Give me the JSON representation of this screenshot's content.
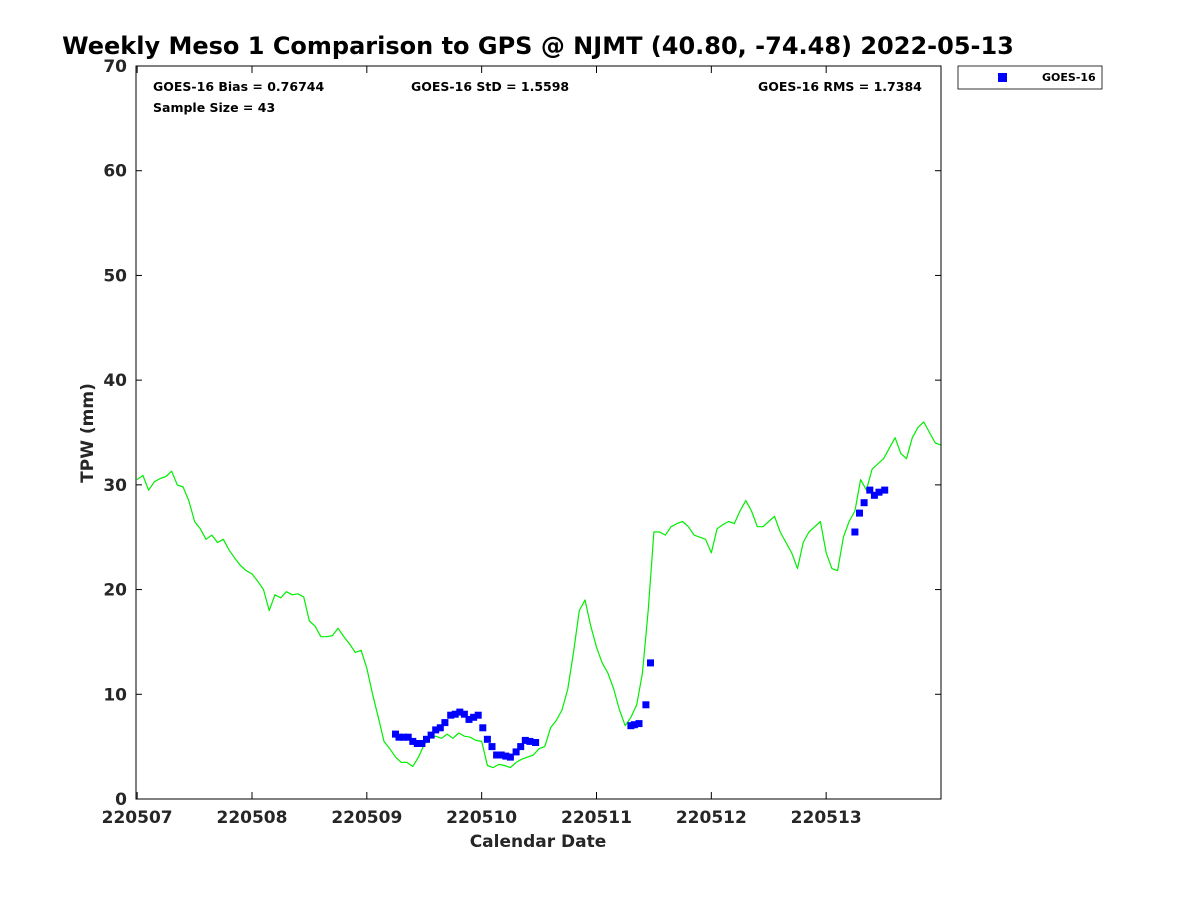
{
  "chart_data": {
    "type": "line",
    "title": "Weekly Meso 1 Comparison to GPS @ NJMT (40.80, -74.48) 2022-05-13",
    "xlabel": "Calendar Date",
    "ylabel": "TPW (mm)",
    "xlim": [
      -0.01,
      7.0
    ],
    "ylim": [
      0,
      70
    ],
    "yticks": [
      0,
      10,
      20,
      30,
      40,
      50,
      60,
      70
    ],
    "xticks": [
      {
        "pos": 0,
        "label": "220507"
      },
      {
        "pos": 1,
        "label": "220508"
      },
      {
        "pos": 2,
        "label": "220509"
      },
      {
        "pos": 3,
        "label": "220510"
      },
      {
        "pos": 4,
        "label": "220511"
      },
      {
        "pos": 5,
        "label": "220512"
      },
      {
        "pos": 6,
        "label": "220513"
      }
    ],
    "stats": {
      "bias": "GOES-16 Bias = 0.76744",
      "std": "GOES-16 StD = 1.5598",
      "rms": "GOES-16 RMS = 1.7384",
      "sample": "Sample Size = 43"
    },
    "legend": {
      "position": "top-right-outside",
      "entries": [
        {
          "name": "GOES-16",
          "color": "#0000ff",
          "marker": "square"
        }
      ]
    },
    "series": [
      {
        "name": "GPS",
        "color": "#00ee00",
        "marker": "line",
        "x": [
          0.0,
          0.05,
          0.1,
          0.15,
          0.2,
          0.25,
          0.3,
          0.35,
          0.4,
          0.45,
          0.5,
          0.55,
          0.6,
          0.65,
          0.7,
          0.75,
          0.8,
          0.85,
          0.9,
          0.95,
          1.0,
          1.05,
          1.1,
          1.15,
          1.2,
          1.25,
          1.3,
          1.35,
          1.4,
          1.45,
          1.5,
          1.55,
          1.6,
          1.65,
          1.7,
          1.75,
          1.8,
          1.85,
          1.9,
          1.95,
          2.0,
          2.05,
          2.1,
          2.15,
          2.2,
          2.25,
          2.3,
          2.35,
          2.4,
          2.45,
          2.5,
          2.55,
          2.6,
          2.65,
          2.7,
          2.75,
          2.8,
          2.85,
          2.9,
          2.95,
          3.0,
          3.05,
          3.1,
          3.15,
          3.2,
          3.25,
          3.3,
          3.35,
          3.4,
          3.45,
          3.5,
          3.55,
          3.6,
          3.65,
          3.7,
          3.75,
          3.8,
          3.85,
          3.9,
          3.95,
          4.0,
          4.05,
          4.1,
          4.15,
          4.2,
          4.25,
          4.3,
          4.35,
          4.4,
          4.45,
          4.5,
          4.55,
          4.6,
          4.65,
          4.7,
          4.75,
          4.8,
          4.85,
          4.9,
          4.95,
          5.0,
          5.05,
          5.1,
          5.15,
          5.2,
          5.25,
          5.3,
          5.35,
          5.4,
          5.45,
          5.5,
          5.55,
          5.6,
          5.65,
          5.7,
          5.75,
          5.8,
          5.85,
          5.9,
          5.95,
          6.0,
          6.05,
          6.1,
          6.15,
          6.2,
          6.25,
          6.3,
          6.35,
          6.4,
          6.45,
          6.5,
          6.55,
          6.6,
          6.65,
          6.7,
          6.75,
          6.8,
          6.85,
          6.9,
          6.95,
          7.0
        ],
        "y": [
          30.5,
          30.9,
          29.5,
          30.3,
          30.6,
          30.8,
          31.3,
          30.0,
          29.8,
          28.5,
          26.5,
          25.8,
          24.8,
          25.2,
          24.5,
          24.8,
          23.8,
          23.0,
          22.3,
          21.8,
          21.5,
          20.8,
          20.0,
          18.0,
          19.5,
          19.2,
          19.8,
          19.5,
          19.6,
          19.3,
          17.0,
          16.5,
          15.5,
          15.5,
          15.6,
          16.3,
          15.5,
          14.8,
          14.0,
          14.2,
          12.5,
          10.0,
          7.8,
          5.5,
          4.8,
          4.0,
          3.5,
          3.5,
          3.1,
          4.0,
          5.2,
          5.8,
          6.0,
          5.8,
          6.2,
          5.8,
          6.3,
          6.0,
          5.9,
          5.6,
          5.5,
          3.2,
          3.0,
          3.3,
          3.2,
          3.0,
          3.5,
          3.8,
          4.0,
          4.2,
          4.8,
          5.0,
          6.8,
          7.5,
          8.5,
          10.5,
          14.0,
          18.0,
          19.0,
          16.5,
          14.5,
          13.0,
          12.0,
          10.5,
          8.5,
          7.0,
          7.8,
          9.0,
          12.0,
          18.0,
          25.5,
          25.5,
          25.2,
          26.0,
          26.3,
          26.5,
          26.0,
          25.2,
          25.0,
          24.8,
          23.5,
          25.8,
          26.2,
          26.5,
          26.3,
          27.5,
          28.5,
          27.5,
          26.0,
          26.0,
          26.5,
          27.0,
          25.5,
          24.5,
          23.5,
          22.0,
          24.5,
          25.5,
          26.0,
          26.5,
          23.5,
          22.0,
          21.8,
          25.0,
          26.5,
          27.5,
          30.5,
          29.5,
          31.5,
          32.0,
          32.5,
          33.5,
          34.5,
          33.0,
          32.5,
          34.5,
          35.5,
          36.0,
          35.0,
          34.0,
          33.8
        ],
        "label": "GPS"
      },
      {
        "name": "GOES-16",
        "color": "#0000ff",
        "marker": "square",
        "x": [
          2.25,
          2.28,
          2.32,
          2.36,
          2.4,
          2.44,
          2.48,
          2.52,
          2.56,
          2.6,
          2.64,
          2.68,
          2.73,
          2.77,
          2.81,
          2.85,
          2.89,
          2.93,
          2.97,
          3.01,
          3.05,
          3.09,
          3.13,
          3.17,
          3.21,
          3.25,
          3.3,
          3.34,
          3.38,
          3.42,
          3.47,
          4.3,
          4.33,
          4.37,
          4.43,
          4.47,
          6.25,
          6.29,
          6.33,
          6.38,
          6.42,
          6.46,
          6.51
        ],
        "y": [
          6.2,
          5.9,
          5.9,
          5.9,
          5.5,
          5.3,
          5.3,
          5.7,
          6.1,
          6.6,
          6.8,
          7.3,
          8.0,
          8.1,
          8.3,
          8.1,
          7.6,
          7.8,
          8.0,
          6.8,
          5.7,
          5.0,
          4.2,
          4.2,
          4.1,
          4.0,
          4.5,
          5.0,
          5.6,
          5.5,
          5.4,
          7.0,
          7.1,
          7.2,
          9.0,
          13.0,
          25.5,
          27.3,
          28.3,
          29.5,
          29.0,
          29.3,
          29.5
        ],
        "label": "GOES-16"
      }
    ]
  }
}
